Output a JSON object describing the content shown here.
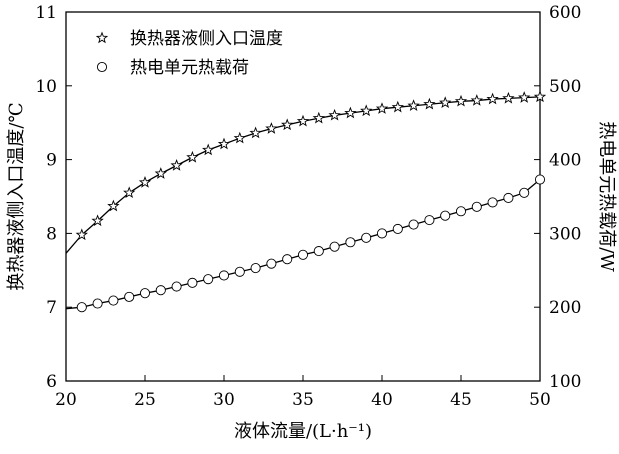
{
  "chart_data": {
    "type": "line",
    "title": "",
    "xlabel": "液体流量/(L·h⁻¹)",
    "ylabel_left": "换热器液侧入口温度/℃",
    "ylabel_right": "热电单元热载荷/W",
    "xlim": [
      20,
      50
    ],
    "ylim_left": [
      6,
      11
    ],
    "ylim_right": [
      100,
      600
    ],
    "x_ticks": [
      20,
      25,
      30,
      35,
      40,
      45,
      50
    ],
    "y_ticks_left": [
      6,
      7,
      8,
      9,
      10,
      11
    ],
    "y_ticks_right": [
      100,
      200,
      300,
      400,
      500,
      600
    ],
    "grid": false,
    "legend_position": "top-left",
    "x": [
      21,
      22,
      23,
      24,
      25,
      26,
      27,
      28,
      29,
      30,
      31,
      32,
      33,
      34,
      35,
      36,
      37,
      38,
      39,
      40,
      41,
      42,
      43,
      44,
      45,
      46,
      47,
      48,
      49,
      50
    ],
    "series": [
      {
        "name": "换热器液侧入口温度",
        "axis": "left",
        "marker": "star",
        "values": [
          7.98,
          8.17,
          8.37,
          8.55,
          8.69,
          8.81,
          8.92,
          9.03,
          9.13,
          9.21,
          9.29,
          9.36,
          9.42,
          9.47,
          9.52,
          9.56,
          9.6,
          9.63,
          9.66,
          9.69,
          9.71,
          9.73,
          9.75,
          9.77,
          9.79,
          9.8,
          9.82,
          9.83,
          9.84,
          9.85
        ],
        "fit_line": {
          "x_start": 20,
          "y_start": 7.73
        }
      },
      {
        "name": "热电单元热载荷",
        "axis": "right",
        "marker": "circle",
        "values": [
          200,
          205,
          209,
          214,
          219,
          223,
          228,
          233,
          238,
          243,
          248,
          253,
          259,
          265,
          271,
          276,
          282,
          288,
          294,
          300,
          306,
          312,
          318,
          324,
          330,
          336,
          342,
          348,
          355,
          373
        ],
        "fit_line": {
          "x_start": 20,
          "y_start": 198
        }
      }
    ]
  },
  "colors": {
    "line": "#000000",
    "background": "#ffffff"
  }
}
